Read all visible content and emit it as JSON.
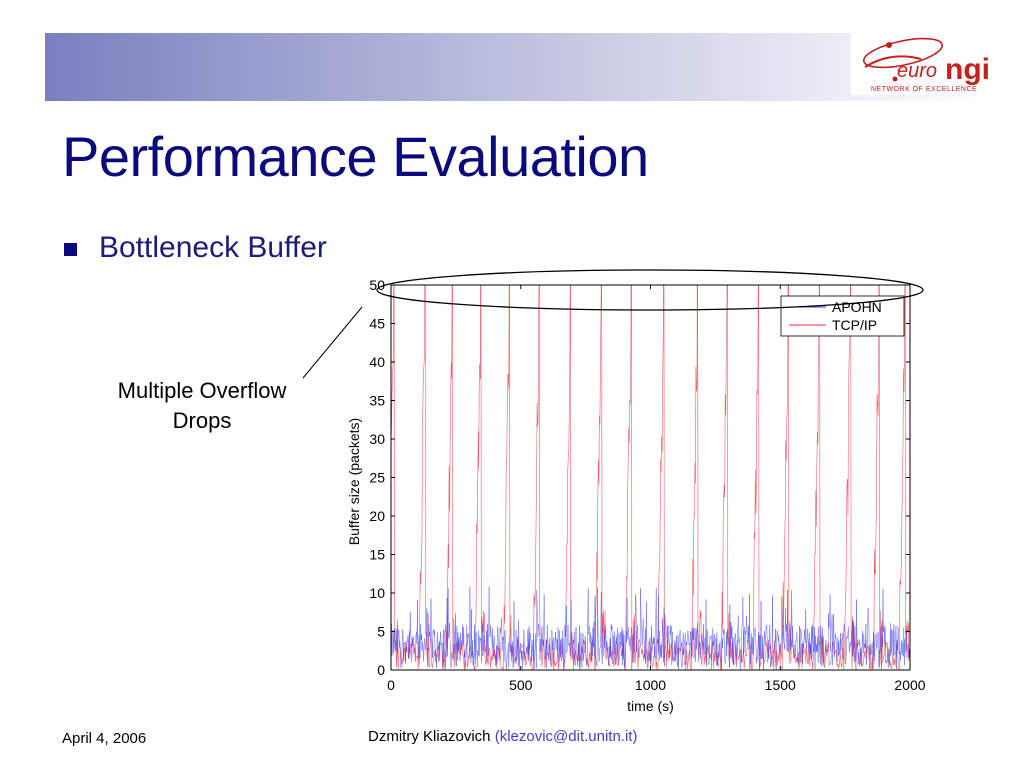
{
  "slide": {
    "title": "Performance Evaluation",
    "bullet": "Bottleneck Buffer",
    "callout_line1": "Multiple Overflow",
    "callout_line2": "Drops",
    "footer_date": "April 4, 2006",
    "footer_author": "Dzmitry Kliazovich",
    "footer_email": "(klezovic@dit.unitn.it)"
  },
  "logo": {
    "text_euro": "euro",
    "text_ngi": "ngi",
    "tagline": "NETWORK OF EXCELLENCE"
  },
  "colors": {
    "title": "#0a0a7c",
    "apohn": "#3333ee",
    "tcpip": "#ee3344",
    "email": "#4040d0"
  },
  "chart_data": {
    "type": "line",
    "xlabel": "time (s)",
    "ylabel": "Buffer size (packets)",
    "xlim": [
      0,
      2000
    ],
    "ylim": [
      0,
      50
    ],
    "xticks": [
      0,
      500,
      1000,
      1500,
      2000
    ],
    "yticks": [
      0,
      5,
      10,
      15,
      20,
      25,
      30,
      35,
      40,
      45,
      50
    ],
    "legend_position": "top-right",
    "series": [
      {
        "name": "APOHN",
        "color": "#3333ee",
        "description_level_range": [
          0,
          11
        ],
        "typical_band": [
          1,
          6
        ]
      },
      {
        "name": "TCP/IP",
        "color": "#ee3344",
        "overflow_peak": 50,
        "overflow_times": [
          10,
          130,
          235,
          345,
          455,
          570,
          690,
          810,
          925,
          1050,
          1180,
          1295,
          1415,
          1530,
          1650,
          1770,
          1880,
          1980
        ]
      }
    ]
  }
}
